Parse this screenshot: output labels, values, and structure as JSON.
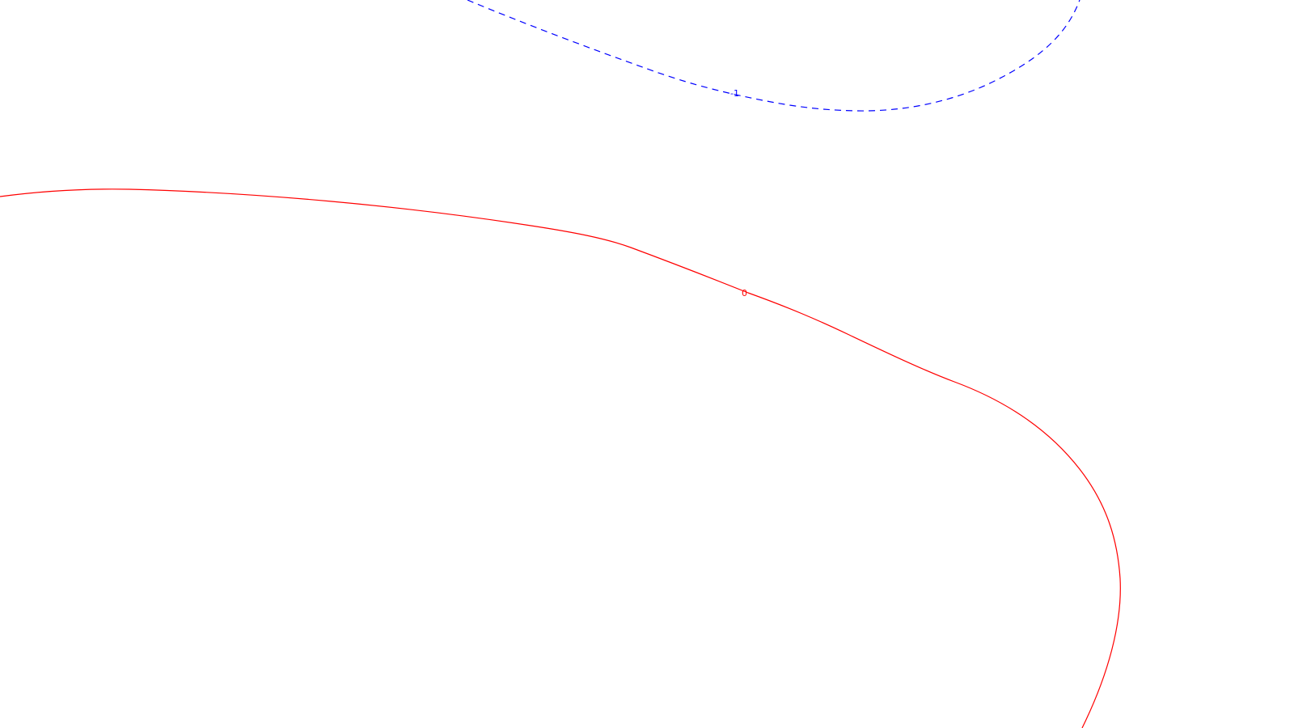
{
  "contours": [
    {
      "id": "contour-neg-1",
      "label": "-1",
      "color": "#0000ff",
      "style": "dashed"
    },
    {
      "id": "contour-0",
      "label": "0",
      "color": "#ff0000",
      "style": "solid"
    }
  ]
}
